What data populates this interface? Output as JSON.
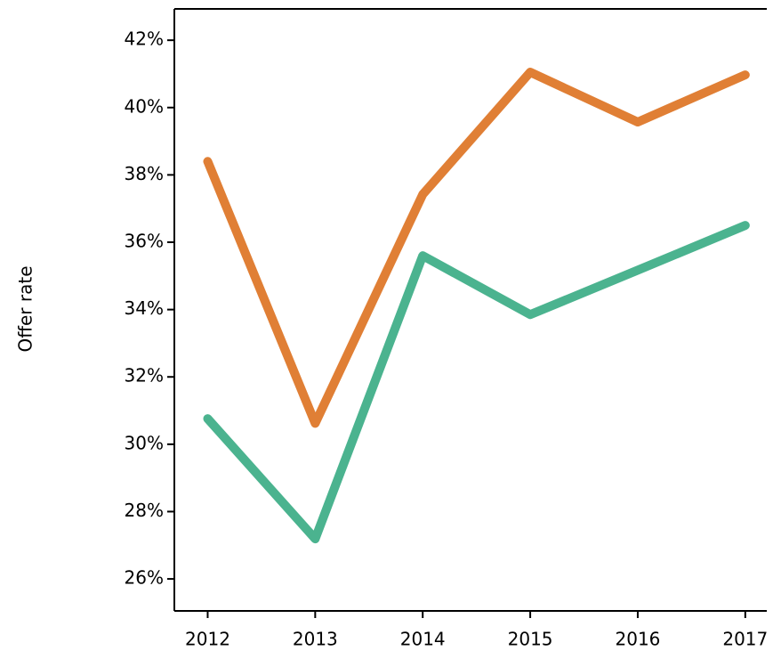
{
  "chart_data": {
    "type": "line",
    "y_label": "Offer rate",
    "x": [
      2012,
      2013,
      2014,
      2015,
      2016,
      2017
    ],
    "series": [
      {
        "color": "#e07f35",
        "values": [
          38.4,
          30.62,
          37.42,
          41.05,
          39.57,
          40.97
        ]
      },
      {
        "color": "#4bb38f",
        "values": [
          30.76,
          27.19,
          35.6,
          33.85,
          35.17,
          36.5
        ]
      }
    ],
    "xlim": [
      2011.69,
      2017.2
    ],
    "xticks": [
      2012,
      2013,
      2014,
      2015,
      2016,
      2017
    ],
    "ylim": [
      25.05,
      42.93
    ],
    "yticks": [
      {
        "value": 26,
        "label": "26%"
      },
      {
        "value": 28,
        "label": "28%"
      },
      {
        "value": 30,
        "label": "30%"
      },
      {
        "value": 32,
        "label": "32%"
      },
      {
        "value": 34,
        "label": "34%"
      },
      {
        "value": 36,
        "label": "36%"
      },
      {
        "value": 38,
        "label": "38%"
      },
      {
        "value": 40,
        "label": "40%"
      },
      {
        "value": 42,
        "label": "42%"
      }
    ]
  }
}
